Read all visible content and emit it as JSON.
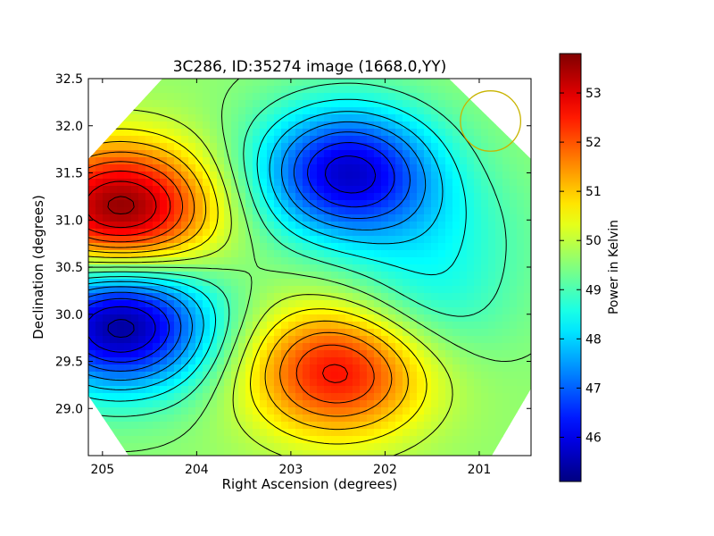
{
  "chart_data": {
    "type": "heatmap",
    "title": "3C286, ID:35274 image (1668.0,YY)",
    "xlabel": "Right Ascension (degrees)",
    "ylabel": "Declination (degrees)",
    "xlim": [
      205.15,
      200.45
    ],
    "ylim": [
      28.5,
      32.5
    ],
    "x_ticks": [
      205,
      204,
      203,
      202,
      201
    ],
    "x_tick_labels": [
      "205",
      "204",
      "203",
      "202",
      "201"
    ],
    "y_ticks": [
      29.0,
      29.5,
      30.0,
      30.5,
      31.0,
      31.5,
      32.0,
      32.5
    ],
    "y_tick_labels": [
      "29.0",
      "29.5",
      "30.0",
      "30.5",
      "31.0",
      "31.5",
      "32.0",
      "32.5"
    ],
    "colorbar": {
      "label": "Power in Kelvin",
      "range": [
        45.1,
        53.8
      ],
      "ticks": [
        46,
        47,
        48,
        49,
        50,
        51,
        52,
        53
      ],
      "tick_labels": [
        "46",
        "47",
        "48",
        "49",
        "50",
        "51",
        "52",
        "53"
      ],
      "colormap": "jet"
    },
    "contour_levels": [
      45.5,
      46.0,
      46.5,
      47.0,
      47.5,
      48.0,
      48.5,
      49.0,
      49.5,
      50.0,
      50.5,
      51.0,
      51.5,
      52.0,
      52.5,
      53.0,
      53.5
    ],
    "features": [
      {
        "ra": 204.8,
        "dec": 31.1,
        "value": 53.8
      },
      {
        "ra": 204.8,
        "dec": 29.9,
        "value": 45.2
      },
      {
        "ra": 202.4,
        "dec": 31.5,
        "value": 45.8
      },
      {
        "ra": 202.5,
        "dec": 29.4,
        "value": 52.7
      },
      {
        "ra": 201.3,
        "dec": 30.9,
        "value": 49.0
      },
      {
        "ra": 201.6,
        "dec": 30.1,
        "value": 48.7
      }
    ],
    "beam_circle": {
      "ra": 200.88,
      "dec": 32.05,
      "radius_deg": 0.32,
      "color": "#c8b400"
    }
  }
}
